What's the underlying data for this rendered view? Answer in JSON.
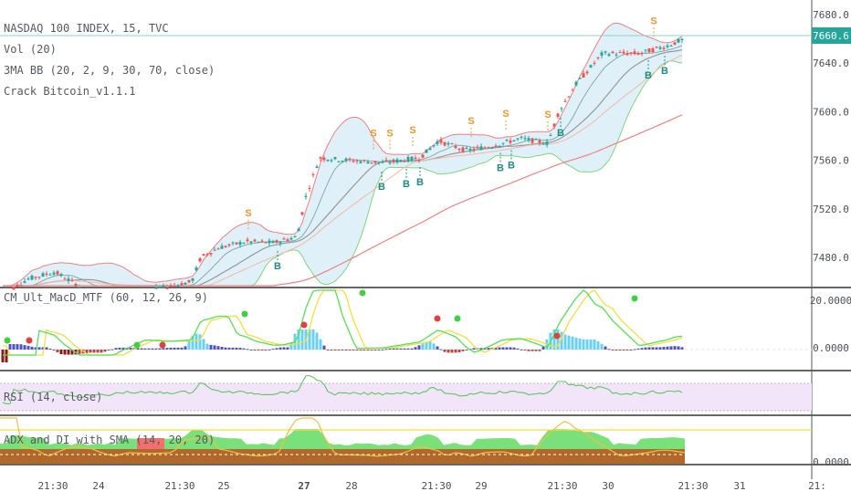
{
  "header": {
    "symbol_line": "NASDAQ 100 INDEX, 15, TVC",
    "indicators": [
      "Vol (20)",
      "3MA BB (20, 2, 9, 30, 70, close)",
      "Crack Bitcoin_v1.1.1"
    ]
  },
  "panes": {
    "macd_label": "CM_Ult_MacD_MTF (60, 12, 26, 9)",
    "rsi_label": "RSI (14, close)",
    "adx_label": "ADX and DI with SMA (14, 20, 20)"
  },
  "price_axis": {
    "ticks": [
      "7680.0",
      "7640.0",
      "7600.0",
      "7560.0",
      "7520.0",
      "7480.0"
    ],
    "last_price": "7660.6",
    "last_price_color": "#26a69a"
  },
  "macd_axis": {
    "ticks": [
      "20.0000",
      "0.0000"
    ]
  },
  "adx_axis": {
    "ticks": [
      "0.0000"
    ]
  },
  "time_axis": {
    "ticks": [
      "21:30",
      "24",
      "21:30",
      "25",
      "27",
      "28",
      "21:30",
      "29",
      "21:30",
      "30",
      "21:30",
      "31",
      "21:"
    ],
    "bold_ticks": [
      "27"
    ]
  },
  "signals": {
    "sell_label": "S",
    "buy_label": "B",
    "sell_color": "#f2962a",
    "buy_color": "#1e8c82"
  },
  "colors": {
    "up_candle": "#26a69a",
    "down_candle": "#ef5350",
    "bb_fill": "#dff0f8",
    "upper_band": "#f08080",
    "lower_band": "#7ed87e",
    "slow_ma": "#f4b8a0",
    "long_ma": "#f08080",
    "rsi_bg": "#f3e5f9",
    "macd_yellow": "#f0e040",
    "macd_green": "#55e055"
  },
  "chart_data": {
    "type": "candlestick",
    "symbol": "NASDAQ 100 INDEX",
    "interval": "15",
    "ylim": [
      7450,
      7692
    ],
    "x_ticks": [
      "21:30",
      "24",
      "21:30",
      "25",
      "27",
      "28",
      "21:30",
      "29",
      "21:30",
      "30",
      "21:30",
      "31",
      "21:"
    ],
    "key_points": [
      {
        "t": 0,
        "price": 7448
      },
      {
        "t": 30,
        "price": 7462
      },
      {
        "t": 60,
        "price": 7468
      },
      {
        "t": 90,
        "price": 7455
      },
      {
        "t": 120,
        "price": 7447
      },
      {
        "t": 150,
        "price": 7452
      },
      {
        "t": 180,
        "price": 7455
      },
      {
        "t": 210,
        "price": 7460
      },
      {
        "t": 220,
        "price": 7480
      },
      {
        "t": 240,
        "price": 7488
      },
      {
        "t": 270,
        "price": 7493
      },
      {
        "t": 300,
        "price": 7492
      },
      {
        "t": 325,
        "price": 7497
      },
      {
        "t": 335,
        "price": 7530
      },
      {
        "t": 350,
        "price": 7562
      },
      {
        "t": 380,
        "price": 7560
      },
      {
        "t": 420,
        "price": 7558
      },
      {
        "t": 460,
        "price": 7562
      },
      {
        "t": 480,
        "price": 7576
      },
      {
        "t": 510,
        "price": 7568
      },
      {
        "t": 540,
        "price": 7572
      },
      {
        "t": 570,
        "price": 7578
      },
      {
        "t": 600,
        "price": 7574
      },
      {
        "t": 612,
        "price": 7600
      },
      {
        "t": 630,
        "price": 7622
      },
      {
        "t": 660,
        "price": 7648
      },
      {
        "t": 700,
        "price": 7648
      },
      {
        "t": 730,
        "price": 7654
      },
      {
        "t": 750,
        "price": 7660
      }
    ],
    "last_price": 7660.6,
    "sell_signals_x": [
      272,
      409,
      427,
      452,
      516,
      554,
      600,
      716
    ],
    "buy_signals_x": [
      304,
      418,
      445,
      460,
      548,
      560,
      614,
      710,
      728
    ]
  }
}
